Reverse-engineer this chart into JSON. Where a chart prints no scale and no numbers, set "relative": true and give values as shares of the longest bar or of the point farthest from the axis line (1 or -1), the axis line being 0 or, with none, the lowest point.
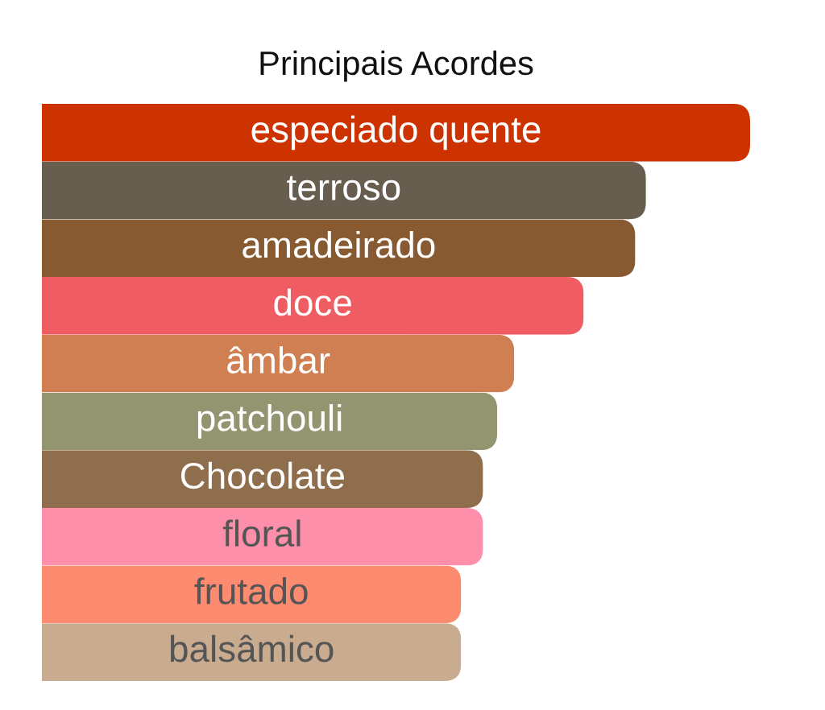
{
  "chart_data": {
    "type": "bar",
    "title": "Principais Acordes",
    "orientation": "horizontal",
    "relative": true,
    "tick_labels": false,
    "categories": [
      "especiado quente",
      "terroso",
      "amadeirado",
      "doce",
      "âmbar",
      "patchouli",
      "Chocolate",
      "floral",
      "frutado",
      "balsâmico"
    ],
    "values": [
      1,
      0.853,
      0.838,
      0.765,
      0.667,
      0.643,
      0.623,
      0.623,
      0.592,
      0.592
    ],
    "colors": [
      "#cc3300",
      "#675e4f",
      "#875a32",
      "#ef5d63",
      "#d07f52",
      "#939470",
      "#8f6e4e",
      "#fe8fab",
      "#fd8b70",
      "#c9ac8f"
    ]
  }
}
